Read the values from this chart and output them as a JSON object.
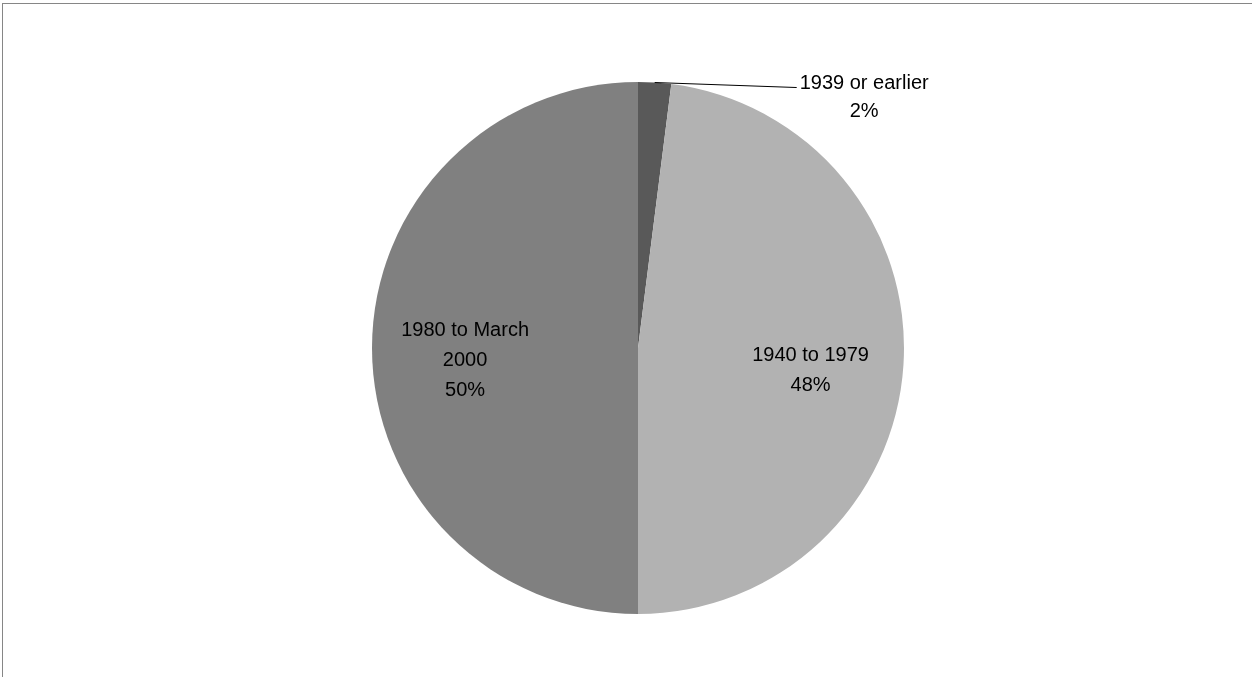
{
  "chart_data": {
    "type": "pie",
    "categories": [
      "1939 or earlier",
      "1940 to 1979",
      "1980 to March 2000"
    ],
    "values": [
      2,
      48,
      50
    ],
    "colors": [
      "#595959",
      "#b2b2b2",
      "#808080"
    ],
    "value_labels": [
      "2%",
      "48%",
      "50%"
    ],
    "legend": false
  }
}
